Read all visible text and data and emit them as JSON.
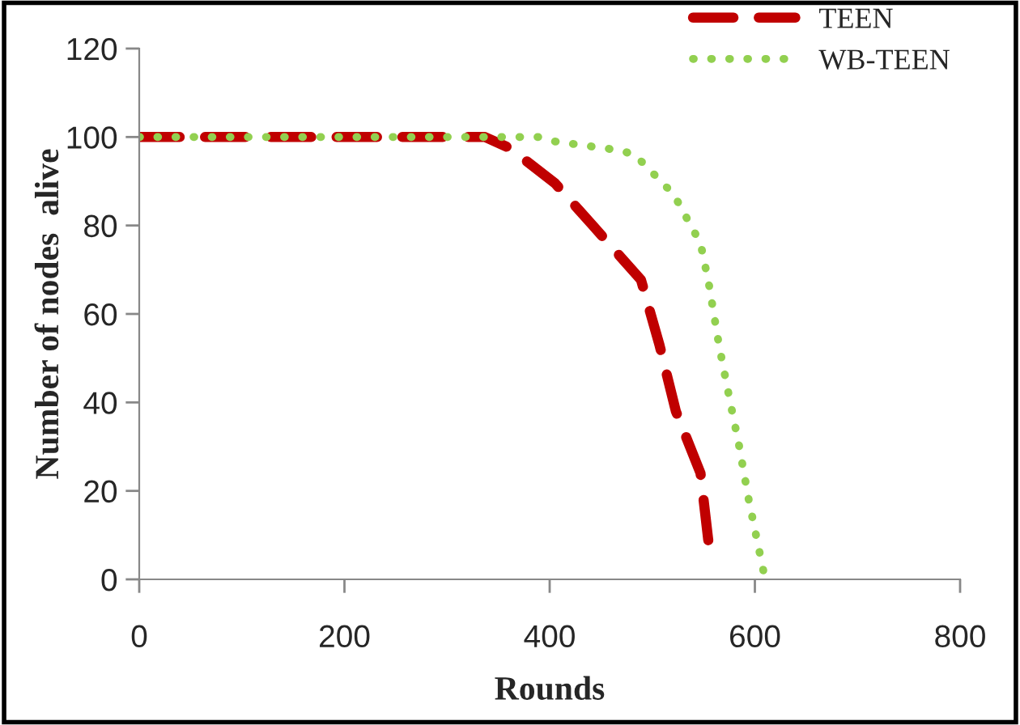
{
  "chart_data": {
    "type": "line",
    "xlabel": "Rounds",
    "ylabel": "Number of nodes  alive",
    "xlim": [
      0,
      800
    ],
    "xticks": [
      0,
      200,
      400,
      600,
      800
    ],
    "ylim": [
      0,
      120
    ],
    "yticks": [
      0,
      20,
      40,
      60,
      80,
      100,
      120
    ],
    "grid": false,
    "legend": "top right",
    "series": [
      {
        "name": "TEEN",
        "color": "#c00000",
        "line_style": "dashed",
        "x": [
          0,
          100,
          200,
          300,
          337,
          361,
          405,
          442,
          489,
          507,
          523,
          547,
          556
        ],
        "values": [
          100,
          100,
          100,
          100,
          100,
          97.5,
          89.6,
          80,
          67.7,
          53,
          38,
          24,
          6
        ]
      },
      {
        "name": "WB-TEEN",
        "color": "#92d050",
        "line_style": "dotted",
        "x": [
          0,
          100,
          200,
          300,
          389,
          405,
          468,
          483,
          521,
          547,
          555,
          565,
          576,
          584,
          594,
          610
        ],
        "values": [
          100,
          100,
          100,
          100,
          100,
          99,
          97,
          96,
          87,
          76,
          67,
          53,
          40,
          31,
          18,
          0
        ]
      }
    ]
  }
}
